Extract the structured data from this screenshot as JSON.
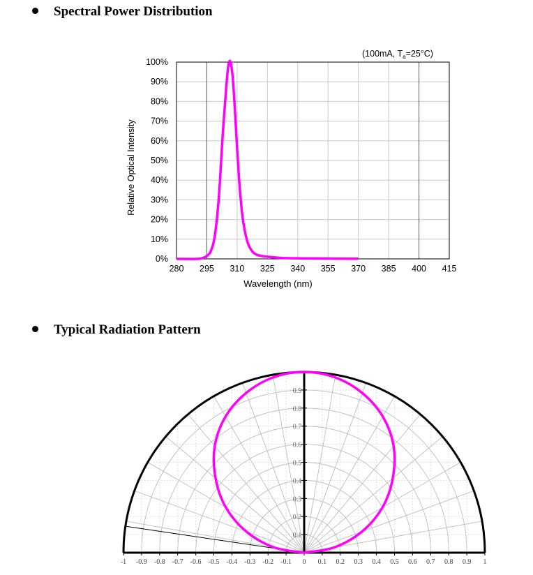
{
  "sections": {
    "spd_title": "Spectral Power Distribution",
    "radiation_title": "Typical Radiation Pattern"
  },
  "colors": {
    "curve": "#ff00ff",
    "grid": "#c8c8c8",
    "axis": "#000000"
  },
  "chart_data": [
    {
      "type": "line",
      "title": "",
      "annotation": "(100mA, Tₐ=25°C)",
      "annotation_parts": {
        "prefix": "(100mA, T",
        "subscript": "a",
        "suffix": "=25°C)"
      },
      "xlabel": "Wavelength (nm)",
      "ylabel": "Relative Optical Intensity",
      "xlim": [
        280,
        415
      ],
      "ylim": [
        0,
        100
      ],
      "x_ticks": [
        "280",
        "295",
        "310",
        "325",
        "340",
        "355",
        "370",
        "385",
        "400",
        "415"
      ],
      "y_ticks": [
        "0%",
        "10%",
        "20%",
        "30%",
        "40%",
        "50%",
        "60%",
        "70%",
        "80%",
        "90%",
        "100%"
      ],
      "grid": true,
      "series": [
        {
          "x": [
            280,
            290,
            293,
            295,
            297,
            299,
            301,
            303,
            305,
            306,
            307,
            308,
            309,
            310,
            311,
            312,
            313,
            315,
            317,
            319,
            322,
            326,
            332,
            340,
            350,
            370
          ],
          "y": [
            0,
            0,
            0.5,
            1.5,
            4,
            12,
            32,
            65,
            92,
            100,
            99,
            90,
            74,
            56,
            40,
            28,
            19,
            9,
            4.5,
            2.5,
            1.5,
            1,
            0.5,
            0.3,
            0.2,
            0.1
          ]
        }
      ]
    },
    {
      "type": "scatter",
      "subtype": "polar-radiation-pattern",
      "title": "",
      "x_ticks": [
        "-1",
        "-0.9",
        "-0.8",
        "-0.7",
        "-0.6",
        "-0.5",
        "-0.4",
        "-0.3",
        "-0.2",
        "-0.1",
        "0",
        "0.1",
        "0.2",
        "0.3",
        "0.4",
        "0.5",
        "0.6",
        "0.7",
        "0.8",
        "0.9",
        "1"
      ],
      "r_ticks": [
        "0.1",
        "0.2",
        "0.3",
        "0.4",
        "0.5",
        "0.6",
        "0.7",
        "0.8",
        "0.9",
        "1"
      ],
      "angle_step_deg": 10,
      "grid": true,
      "series": [
        {
          "angle_deg": [
            -90,
            -80,
            -70,
            -60,
            -50,
            -40,
            -30,
            -20,
            -10,
            0,
            10,
            20,
            30,
            40,
            50,
            60,
            70,
            80,
            90
          ],
          "r": [
            0,
            0.17,
            0.34,
            0.5,
            0.64,
            0.77,
            0.87,
            0.94,
            0.985,
            1,
            0.985,
            0.94,
            0.87,
            0.77,
            0.64,
            0.5,
            0.34,
            0.17,
            0
          ]
        }
      ]
    }
  ]
}
